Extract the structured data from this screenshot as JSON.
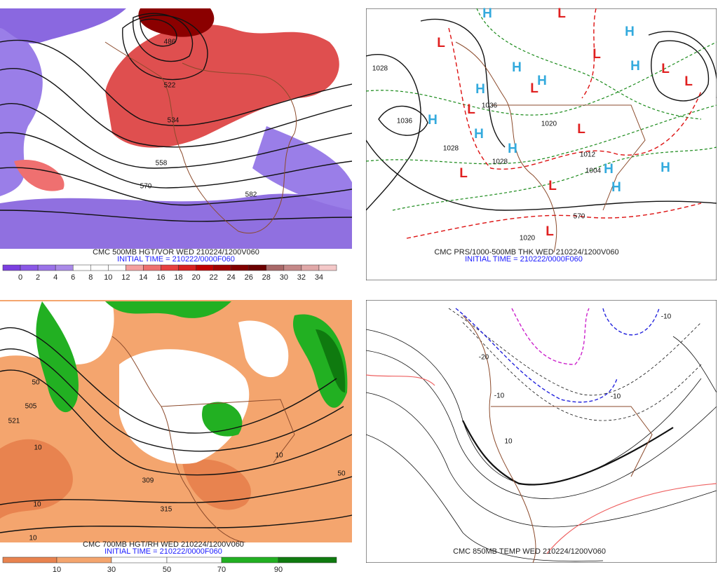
{
  "panels": [
    {
      "caption": "CMC 500MB HGT/VOR WED 210224/1200V060",
      "initial_time": "INITIAL TIME = 210222/0000F060",
      "colorbar_labels": [
        "0",
        "2",
        "4",
        "6",
        "8",
        "10",
        "12",
        "14",
        "16",
        "18",
        "20",
        "22",
        "24",
        "26",
        "28",
        "30",
        "32",
        "34"
      ],
      "contour_labels": [
        "486",
        "522",
        "534",
        "558",
        "570",
        "582"
      ]
    },
    {
      "caption": "CMC PRS/1000-500MB THK WED 210224/1200V060",
      "initial_time": "INITIAL TIME = 210222/0000F060",
      "high_markers": [
        "H",
        "H",
        "H",
        "H",
        "H",
        "H",
        "H",
        "H",
        "H",
        "H",
        "H",
        "H"
      ],
      "low_markers": [
        "L",
        "L",
        "L",
        "L",
        "L",
        "L",
        "L",
        "L",
        "L",
        "L",
        "L"
      ],
      "contour_labels": [
        "1028",
        "1036",
        "1036",
        "1028",
        "1020",
        "1012",
        "1004",
        "1028",
        "570",
        "1020"
      ]
    },
    {
      "caption": "CMC 700MB HGT/RH WED 210224/1200V060",
      "initial_time": "INITIAL TIME = 210222/0000F060",
      "colorbar_labels": [
        "10",
        "30",
        "50",
        "70",
        "90"
      ],
      "contour_labels": [
        "50",
        "505",
        "521",
        "10",
        "10",
        "10",
        "309",
        "315",
        "50",
        "10"
      ]
    },
    {
      "caption": "CMC 850MB TEMP WED 210224/1200V060",
      "contour_labels": [
        "-10",
        "-10",
        "-20",
        "-10",
        "10"
      ]
    }
  ]
}
